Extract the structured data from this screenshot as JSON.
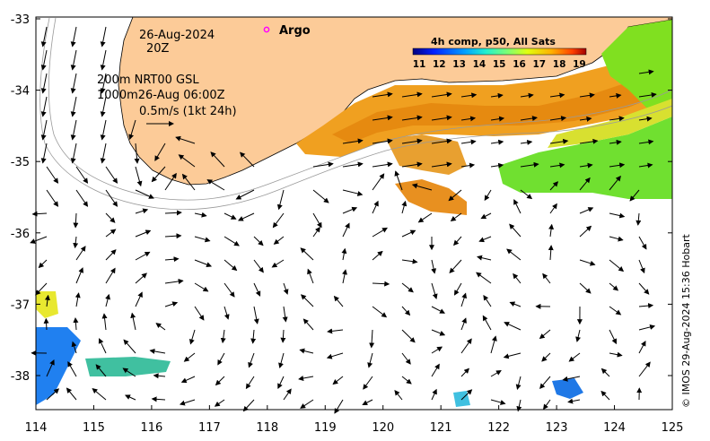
{
  "title_block": {
    "date": "26-Aug-2024",
    "time": "20Z",
    "depth_line_1": "200m  NRT00 GSL",
    "depth_line_2": "1000m26-Aug 06:00Z",
    "scale_label": "0.5m/s (1kt 24h)"
  },
  "argo_label": "Argo",
  "colorbar": {
    "title": "4h comp, p50, All Sats",
    "ticks": [
      "11",
      "12",
      "13",
      "14",
      "15",
      "16",
      "17",
      "18",
      "19"
    ],
    "colors": [
      "#00007f",
      "#0020ff",
      "#00a0ff",
      "#20f0d0",
      "#80ff70",
      "#e0ff10",
      "#ffb000",
      "#ff4000",
      "#a00000"
    ]
  },
  "axes": {
    "x_ticks": [
      "114",
      "115",
      "116",
      "117",
      "118",
      "119",
      "120",
      "121",
      "122",
      "123",
      "124",
      "125"
    ],
    "y_ticks": [
      "-33",
      "-34",
      "-35",
      "-36",
      "-37",
      "-38"
    ]
  },
  "credit": "© IMOS 29-Aug-2024 15:36 Hobart",
  "colors": {
    "land": "#fccb98",
    "sst_warm": "#f0a020",
    "sst_orange": "#e68a10",
    "sst_yellow": "#d8e030",
    "sst_green": "#70e030",
    "sst_lime": "#a8e840",
    "sst_cyan": "#40c0e0",
    "sst_blue": "#2080f0",
    "argo": "#ff00ff"
  }
}
